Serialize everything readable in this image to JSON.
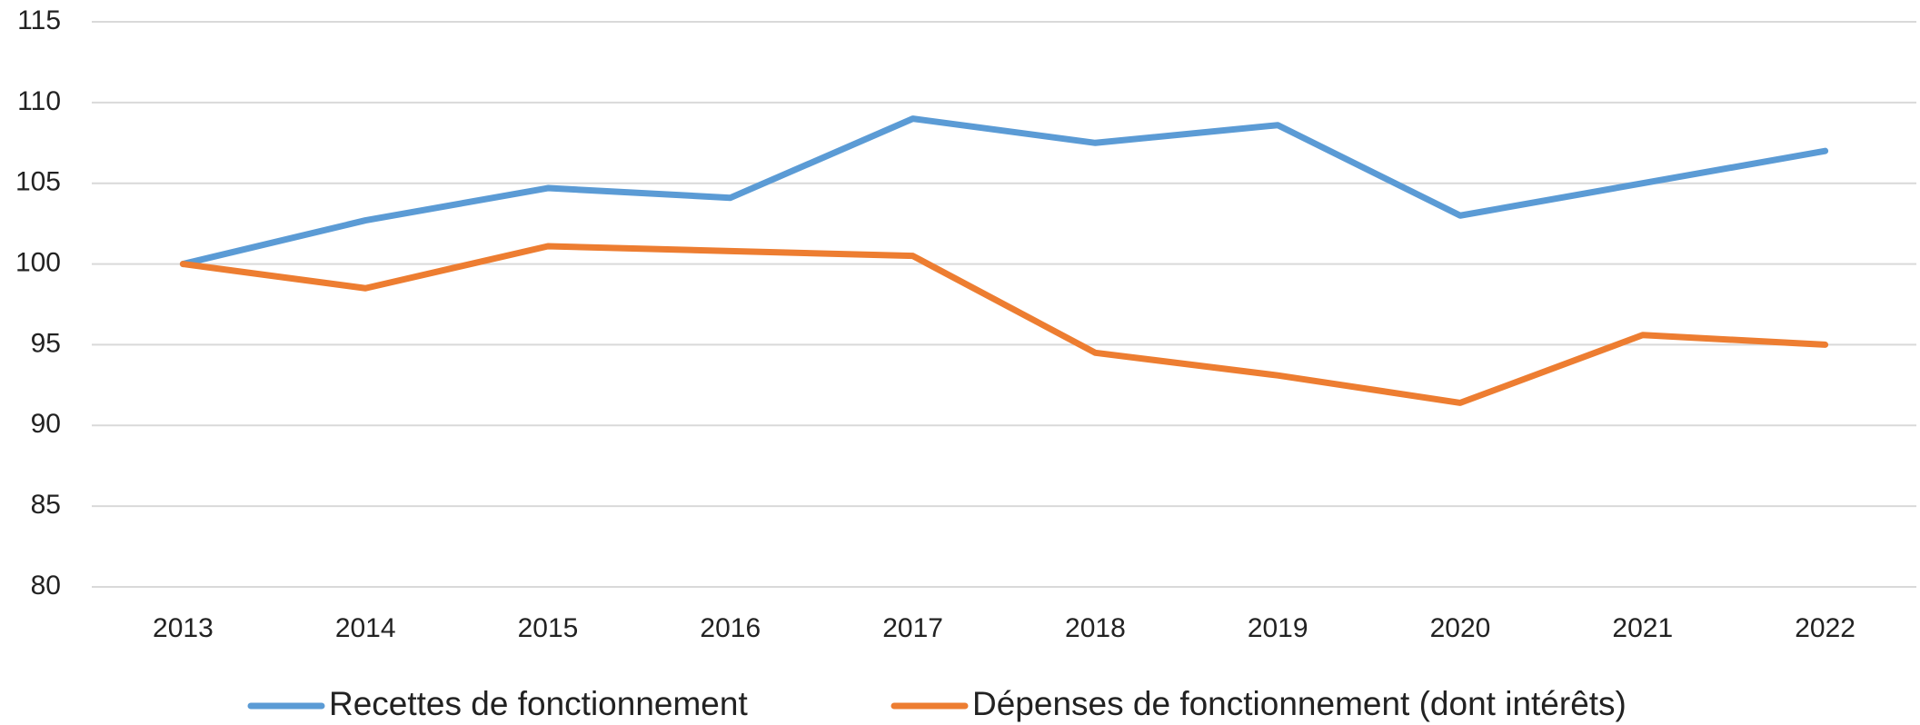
{
  "chart_data": {
    "type": "line",
    "categories": [
      "2013",
      "2014",
      "2015",
      "2016",
      "2017",
      "2018",
      "2019",
      "2020",
      "2021",
      "2022"
    ],
    "series": [
      {
        "name": "Recettes de fonctionnement",
        "color": "#5b9bd5",
        "values": [
          100,
          102.7,
          104.7,
          104.1,
          109,
          107.5,
          108.6,
          103,
          105,
          107
        ]
      },
      {
        "name": "Dépenses de fonctionnement (dont intérêts)",
        "color": "#ed7d31",
        "values": [
          100,
          98.5,
          101.1,
          100.8,
          100.5,
          94.5,
          93.1,
          91.4,
          95.6,
          95
        ]
      }
    ],
    "ylim": [
      80,
      115
    ],
    "yticks": [
      80,
      85,
      90,
      95,
      100,
      105,
      110,
      115
    ],
    "grid": true,
    "legend": "bottom"
  }
}
